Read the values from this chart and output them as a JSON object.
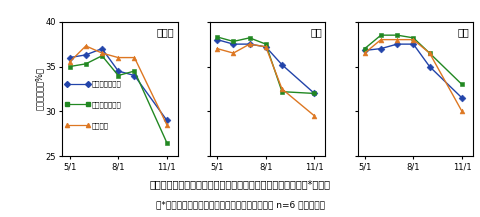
{
  "title": "図２　緩傾斜地園における亜主枝・主枝・主幹の体積含水率*の変化",
  "subtitle": "（*：隔年交互遊休年、生産年、上部摘果ともに n=6 の平均値）",
  "ylabel": "体積含水率（%）",
  "ylim": [
    25,
    40
  ],
  "yticks": [
    25,
    30,
    35,
    40
  ],
  "x_tick_pos": [
    0,
    1.35,
    2.7
  ],
  "x_tick_labels": [
    "5/1",
    "8/1",
    "11/1"
  ],
  "legend_labels": [
    "隔年交互生産年",
    "隔年交互遊休年",
    "上部摘果"
  ],
  "colors": [
    "#2244aa",
    "#228822",
    "#dd7722"
  ],
  "markers": [
    "D",
    "s",
    "^"
  ],
  "panels": [
    {
      "title": "亜主枝",
      "x": [
        0,
        0.45,
        0.9,
        1.35,
        1.8,
        2.7
      ],
      "series": [
        {
          "values": [
            36.0,
            36.3,
            37.0,
            34.5,
            34.0,
            29.0
          ]
        },
        {
          "values": [
            35.0,
            35.3,
            36.2,
            34.0,
            34.5,
            26.5
          ]
        },
        {
          "values": [
            35.5,
            37.3,
            36.5,
            36.0,
            36.0,
            28.5
          ]
        }
      ]
    },
    {
      "title": "主枝",
      "x": [
        0,
        0.45,
        0.9,
        1.35,
        1.8,
        2.7
      ],
      "series": [
        {
          "values": [
            38.0,
            37.5,
            37.5,
            37.2,
            35.2,
            32.0
          ]
        },
        {
          "values": [
            38.3,
            37.8,
            38.2,
            37.5,
            32.2,
            32.0
          ]
        },
        {
          "values": [
            37.0,
            36.5,
            37.5,
            37.2,
            32.5,
            29.5
          ]
        }
      ]
    },
    {
      "title": "主幹",
      "x": [
        0,
        0.45,
        0.9,
        1.35,
        1.8,
        2.7
      ],
      "series": [
        {
          "values": [
            36.8,
            37.0,
            37.5,
            37.5,
            35.0,
            31.5
          ]
        },
        {
          "values": [
            37.0,
            38.5,
            38.5,
            38.2,
            36.5,
            33.0
          ]
        },
        {
          "values": [
            36.5,
            38.0,
            38.0,
            38.0,
            36.5,
            30.0
          ]
        }
      ]
    }
  ]
}
